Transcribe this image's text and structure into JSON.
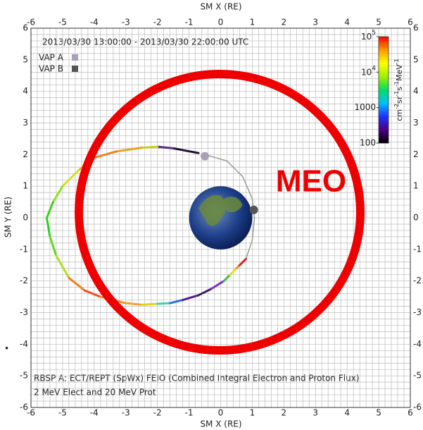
{
  "chart_data": {
    "type": "orbit",
    "title": "2013/03/30 13:00:00 - 2013/03/30 22:00:00 UTC",
    "x_label": "SM X (RE)",
    "y_label": "SM Y (RE)",
    "xlim": [
      -6,
      6
    ],
    "ylim": [
      -6,
      6
    ],
    "xticks": [
      -6,
      -5,
      -4,
      -3,
      -2,
      -1,
      0,
      1,
      2,
      3,
      4,
      5,
      6
    ],
    "yticks": [
      -6,
      -5,
      -4,
      -3,
      -2,
      -1,
      0,
      1,
      2,
      3,
      4,
      5,
      6
    ],
    "grid": true,
    "orbit": {
      "x": [
        -0.7,
        -1.5,
        -2.0,
        -2.5,
        -3.3,
        -4.0,
        -4.5,
        -5.0,
        -5.3,
        -5.5,
        -5.4,
        -5.2,
        -4.8,
        -4.3,
        -3.8,
        -3.0,
        -2.5,
        -2.0,
        -1.6,
        -1.2,
        -0.7,
        -0.3,
        0.1,
        0.3,
        0.5,
        0.6,
        0.8
      ],
      "y": [
        2.05,
        2.2,
        2.25,
        2.22,
        2.1,
        1.9,
        1.5,
        1.0,
        0.5,
        0.0,
        -0.6,
        -1.2,
        -1.9,
        -2.3,
        -2.5,
        -2.7,
        -2.75,
        -2.72,
        -2.7,
        -2.6,
        -2.45,
        -2.25,
        -2.0,
        -1.8,
        -1.6,
        -1.5,
        -1.3
      ],
      "colors": [
        "#201030",
        "#5a2a8a",
        "#c8d020",
        "#f0a020",
        "#f08020",
        "#f0b020",
        "#d8e020",
        "#90e020",
        "#40d020",
        "#30d020",
        "#60d820",
        "#b0e020",
        "#f08020",
        "#f05020",
        "#f09020",
        "#f0a030",
        "#e0d020",
        "#40d0b0",
        "#3070e0",
        "#502090",
        "#402060",
        "#8030c0",
        "#40c040",
        "#e0e020",
        "#f09020",
        "#e02020"
      ]
    },
    "trajectory": {
      "color": "#9a9a9a",
      "x": [
        0.8,
        1.0,
        1.07,
        1.0,
        0.7,
        0.2,
        -0.5
      ],
      "y": [
        -1.3,
        -0.7,
        0.0,
        0.6,
        1.3,
        1.8,
        2.0
      ]
    },
    "spacecraft": [
      {
        "name": "VAP A",
        "color": "#a9a0b8",
        "x": -0.5,
        "y": 1.95
      },
      {
        "name": "VAP B",
        "color": "#555555",
        "x": 1.05,
        "y": 0.25
      }
    ],
    "colorbar": {
      "log": true,
      "lim": [
        100,
        100000
      ],
      "colors": [
        "#000000",
        "#4b0082",
        "#2030ff",
        "#00c0ff",
        "#00e060",
        "#a0f000",
        "#ffff00",
        "#ff9900",
        "#ff0000"
      ],
      "ticks": [
        100,
        1000,
        {
          "value": 10000,
          "label": "10",
          "sup": "4"
        },
        {
          "value": 100000,
          "label": "10",
          "sup": "5"
        }
      ],
      "unit": {
        "text": [
          "cm",
          "sr",
          "s",
          "MeV"
        ],
        "sup": [
          "-2",
          "-1",
          "-1",
          "-1"
        ]
      }
    },
    "notes": [
      "RBSP A: ECT/REPT (SpWx) FEIO (Combined Integral Electron and Proton Flux)",
      "2 MeV Elect and 20 MeV Prot"
    ],
    "annotation": "MEO",
    "list_marker": "•"
  }
}
